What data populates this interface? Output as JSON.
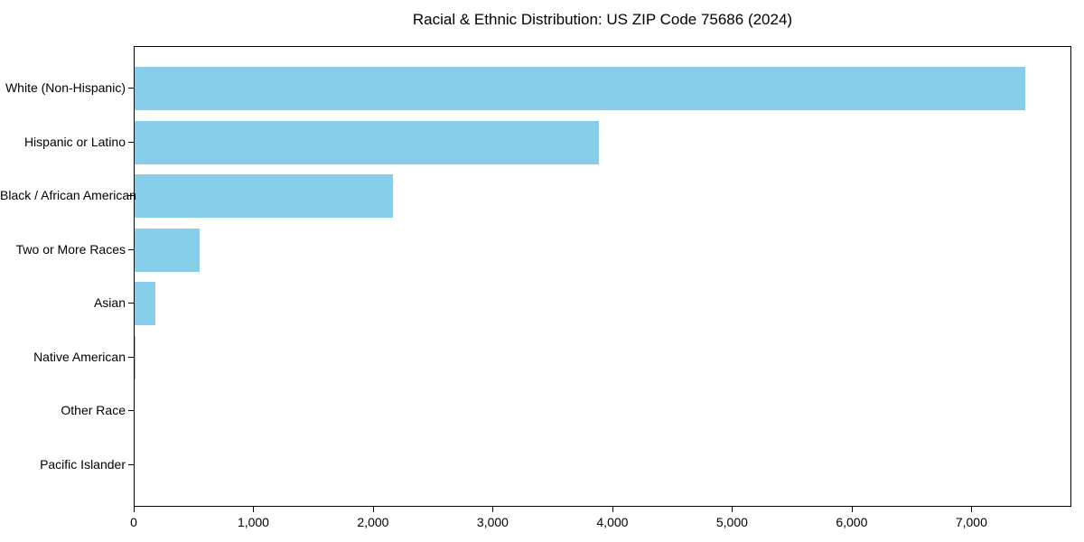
{
  "title": "Racial & Ethnic Distribution: US ZIP Code 75686 (2024)",
  "chart_data": {
    "type": "bar",
    "orientation": "horizontal",
    "title": "Racial & Ethnic Distribution: US ZIP Code 75686 (2024)",
    "categories": [
      "White (Non-Hispanic)",
      "Hispanic or Latino",
      "Black / African American",
      "Two or More Races",
      "Asian",
      "Native American",
      "Other Race",
      "Pacific Islander"
    ],
    "values": [
      7440,
      3878,
      2160,
      542,
      173,
      8,
      0,
      0
    ],
    "xlabel": "",
    "ylabel": "",
    "xlim": [
      0,
      7820
    ],
    "xticks": [
      0,
      1000,
      2000,
      3000,
      4000,
      5000,
      6000,
      7000
    ],
    "xtick_labels": [
      "0",
      "1,000",
      "2,000",
      "3,000",
      "4,000",
      "5,000",
      "6,000",
      "7,000"
    ],
    "bar_color": "#87CEEB",
    "axis_color": "#000000",
    "background_color": "#ffffff",
    "grid": false,
    "legend": null
  }
}
